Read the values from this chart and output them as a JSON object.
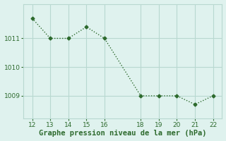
{
  "x": [
    12,
    13,
    14,
    15,
    16,
    18,
    19,
    20,
    21,
    22
  ],
  "y": [
    1011.7,
    1011.0,
    1011.0,
    1011.4,
    1011.0,
    1009.0,
    1009.0,
    1009.0,
    1008.7,
    1009.0
  ],
  "line_color": "#2d6a2d",
  "marker": "D",
  "marker_size": 2.5,
  "linewidth": 1.0,
  "bg_color": "#dff2ee",
  "grid_color": "#b8d8d0",
  "xlabel": "Graphe pression niveau de la mer (hPa)",
  "xlabel_color": "#2d6a2d",
  "xlabel_fontsize": 7.5,
  "tick_color": "#2d6a2d",
  "tick_fontsize": 6.5,
  "yticks": [
    1009,
    1010,
    1011
  ],
  "xticks": [
    12,
    13,
    14,
    15,
    16,
    18,
    19,
    20,
    21,
    22
  ],
  "ylim": [
    1008.2,
    1012.2
  ],
  "xlim": [
    11.5,
    22.5
  ]
}
